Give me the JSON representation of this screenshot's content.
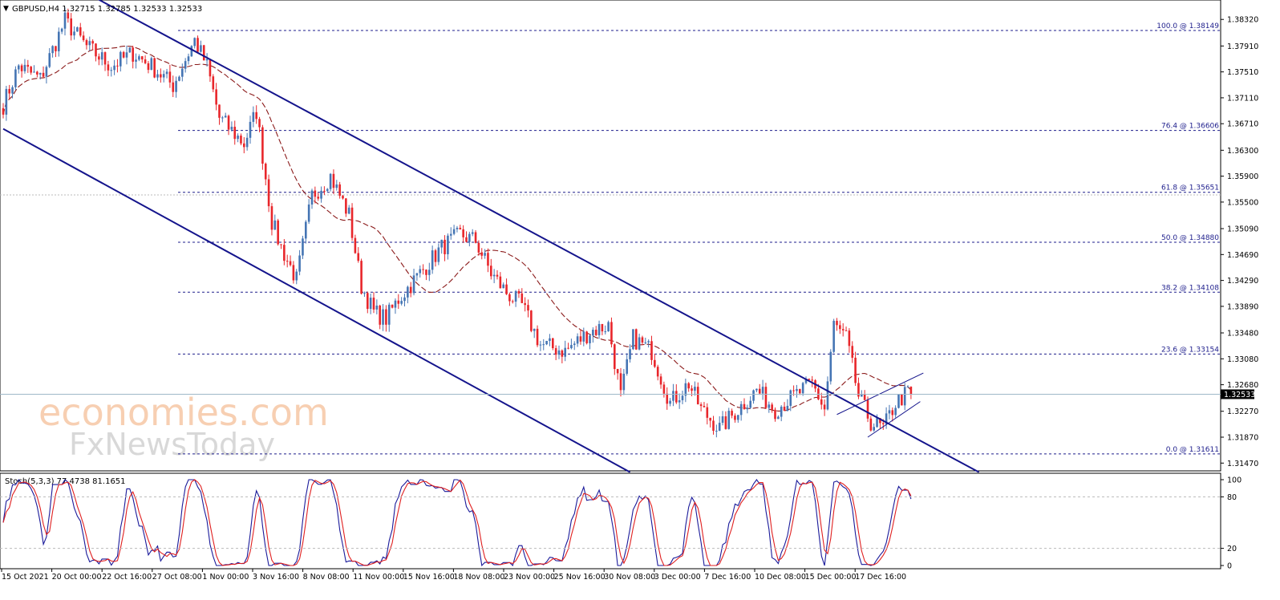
{
  "header": {
    "symbol_line": "GBPUSD,H4  1.32715 1.32785 1.32533 1.32533"
  },
  "price_axis": {
    "ticks": [
      "1.38320",
      "1.37910",
      "1.37510",
      "1.37110",
      "1.36710",
      "1.36300",
      "1.35900",
      "1.35500",
      "1.35090",
      "1.34690",
      "1.34290",
      "1.33890",
      "1.33480",
      "1.33080",
      "1.32680",
      "1.32270",
      "1.31870",
      "1.31470"
    ],
    "tick_values": [
      1.3832,
      1.3791,
      1.3751,
      1.3711,
      1.3671,
      1.363,
      1.359,
      1.355,
      1.3509,
      1.3469,
      1.3429,
      1.3389,
      1.3348,
      1.3308,
      1.3268,
      1.3227,
      1.3187,
      1.3147
    ],
    "current_price_label": "1.32533",
    "current_price": 1.32533,
    "ylim": [
      1.3135,
      1.3862
    ]
  },
  "fib_levels": [
    {
      "label": "100.0 @ 1.38149",
      "value": 1.38149
    },
    {
      "label": "76.4 @ 1.36606",
      "value": 1.36606
    },
    {
      "label": "61.8 @ 1.35651",
      "value": 1.35651
    },
    {
      "label": "50.0 @ 1.34880",
      "value": 1.3488
    },
    {
      "label": "38.2 @ 1.34108",
      "value": 1.34108
    },
    {
      "label": "23.6 @ 1.33154",
      "value": 1.33154
    },
    {
      "label": "0.0 @ 1.31611",
      "value": 1.31611
    }
  ],
  "stochastic": {
    "label": "Stoch(5,3,3) 77.4738 81.1651",
    "ticks": [
      "100",
      "80",
      "20",
      "0"
    ],
    "levels": [
      80,
      20
    ],
    "ylim": [
      0,
      100
    ]
  },
  "time_axis": {
    "labels": [
      "15 Oct 2021",
      "20 Oct 00:00",
      "22 Oct 16:00",
      "27 Oct 08:00",
      "1 Nov 00:00",
      "3 Nov 16:00",
      "8 Nov 08:00",
      "11 Nov 00:00",
      "15 Nov 16:00",
      "18 Nov 08:00",
      "23 Nov 00:00",
      "25 Nov 16:00",
      "30 Nov 08:00",
      "3 Dec 00:00",
      "7 Dec 16:00",
      "10 Dec 08:00",
      "15 Dec 00:00",
      "17 Dec 16:00"
    ]
  },
  "watermark": {
    "line1": "economies.com",
    "line2": "FxNewsToday"
  },
  "colors": {
    "bull": "#4575b4",
    "bear": "#e8262b",
    "channel": "#14148c",
    "fib": "#1e1e8c",
    "ma": "#8b1a1a",
    "stoch_main": "#1a1a9a",
    "stoch_signal": "#e02020"
  },
  "chart_data": {
    "type": "candlestick",
    "timeframe": "H4",
    "symbol": "GBPUSD",
    "anchors": [
      {
        "i": 0,
        "p": 1.37
      },
      {
        "i": 5,
        "p": 1.376
      },
      {
        "i": 12,
        "p": 1.374
      },
      {
        "i": 20,
        "p": 1.383
      },
      {
        "i": 27,
        "p": 1.379
      },
      {
        "i": 35,
        "p": 1.376
      },
      {
        "i": 42,
        "p": 1.378
      },
      {
        "i": 48,
        "p": 1.376
      },
      {
        "i": 55,
        "p": 1.373
      },
      {
        "i": 62,
        "p": 1.38
      },
      {
        "i": 66,
        "p": 1.376
      },
      {
        "i": 70,
        "p": 1.368
      },
      {
        "i": 78,
        "p": 1.364
      },
      {
        "i": 82,
        "p": 1.369
      },
      {
        "i": 87,
        "p": 1.352
      },
      {
        "i": 90,
        "p": 1.348
      },
      {
        "i": 95,
        "p": 1.343
      },
      {
        "i": 100,
        "p": 1.356
      },
      {
        "i": 106,
        "p": 1.359
      },
      {
        "i": 112,
        "p": 1.353
      },
      {
        "i": 116,
        "p": 1.342
      },
      {
        "i": 120,
        "p": 1.338
      },
      {
        "i": 124,
        "p": 1.337
      },
      {
        "i": 128,
        "p": 1.34
      },
      {
        "i": 135,
        "p": 1.344
      },
      {
        "i": 142,
        "p": 1.348
      },
      {
        "i": 148,
        "p": 1.35
      },
      {
        "i": 153,
        "p": 1.349
      },
      {
        "i": 158,
        "p": 1.344
      },
      {
        "i": 163,
        "p": 1.341
      },
      {
        "i": 168,
        "p": 1.339
      },
      {
        "i": 174,
        "p": 1.333
      },
      {
        "i": 182,
        "p": 1.332
      },
      {
        "i": 190,
        "p": 1.335
      },
      {
        "i": 196,
        "p": 1.336
      },
      {
        "i": 200,
        "p": 1.325
      },
      {
        "i": 204,
        "p": 1.334
      },
      {
        "i": 210,
        "p": 1.332
      },
      {
        "i": 216,
        "p": 1.324
      },
      {
        "i": 222,
        "p": 1.327
      },
      {
        "i": 226,
        "p": 1.323
      },
      {
        "i": 232,
        "p": 1.32
      },
      {
        "i": 238,
        "p": 1.323
      },
      {
        "i": 244,
        "p": 1.326
      },
      {
        "i": 250,
        "p": 1.323
      },
      {
        "i": 256,
        "p": 1.325
      },
      {
        "i": 262,
        "p": 1.327
      },
      {
        "i": 266,
        "p": 1.323
      },
      {
        "i": 269,
        "p": 1.336
      },
      {
        "i": 273,
        "p": 1.334
      },
      {
        "i": 277,
        "p": 1.325
      },
      {
        "i": 281,
        "p": 1.321
      },
      {
        "i": 285,
        "p": 1.32
      },
      {
        "i": 289,
        "p": 1.324
      },
      {
        "i": 294,
        "p": 1.326
      }
    ],
    "bar_count": 295,
    "last_close": 1.32533,
    "moving_average_color": "#8b1a1a",
    "descending_channel": {
      "upper_line": [
        {
          "i": 30,
          "p": 1.3865
        },
        {
          "i": 316,
          "p": 1.3133
        }
      ],
      "lower_line": [
        {
          "i": 0,
          "p": 1.3663
        },
        {
          "i": 203,
          "p": 1.3133
        }
      ]
    },
    "rising_wedge": {
      "upper_line": [
        {
          "i": 270,
          "p": 1.3222
        },
        {
          "i": 298,
          "p": 1.3286
        }
      ],
      "lower_line": [
        {
          "i": 280,
          "p": 1.3187
        },
        {
          "i": 297,
          "p": 1.3242
        }
      ]
    },
    "stoch_main_last": 77.4738,
    "stoch_signal_last": 81.1651
  }
}
